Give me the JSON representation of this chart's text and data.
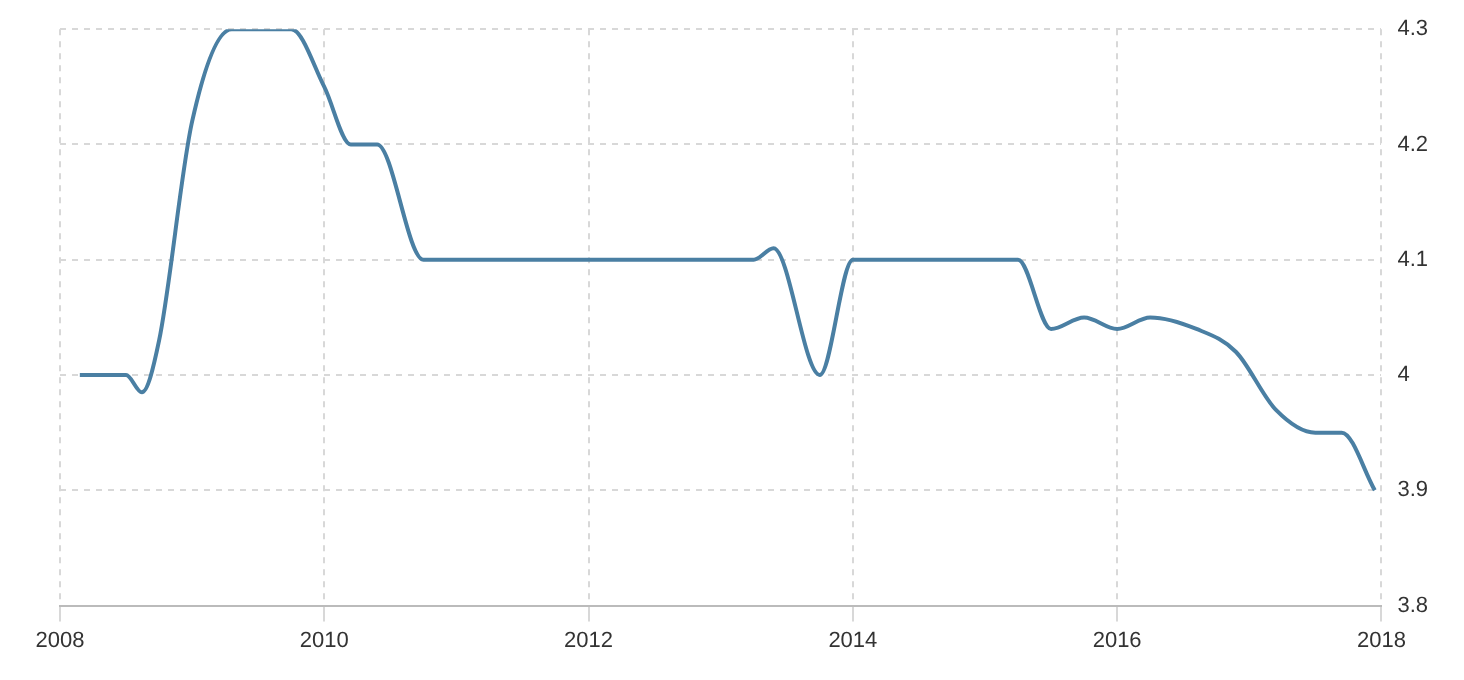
{
  "chart_data": {
    "type": "line",
    "x": [
      2008.15,
      2008.5,
      2008.62,
      2008.75,
      2009,
      2009.3,
      2009.75,
      2010,
      2010.2,
      2010.4,
      2010.75,
      2011,
      2013.25,
      2013.4,
      2013.75,
      2014,
      2014.2,
      2015.1,
      2015.25,
      2015.5,
      2015.75,
      2016,
      2016.25,
      2016.6,
      2016.9,
      2017.2,
      2017.5,
      2017.7,
      2017.95
    ],
    "series": [
      {
        "color": "#4a7fa3",
        "values": [
          4.0,
          4.0,
          3.985,
          4.03,
          4.22,
          4.3,
          4.3,
          4.25,
          4.2,
          4.2,
          4.1,
          4.1,
          4.1,
          4.11,
          4.0,
          4.1,
          4.1,
          4.1,
          4.1,
          4.04,
          4.05,
          4.04,
          4.05,
          4.04,
          4.02,
          3.97,
          3.95,
          3.95,
          3.9
        ]
      }
    ],
    "xlim": [
      2008,
      2018
    ],
    "xticks": [
      2008,
      2010,
      2012,
      2014,
      2016,
      2018
    ],
    "ylim": [
      3.8,
      4.3
    ],
    "yticks": [
      3.8,
      3.9,
      4,
      4.1,
      4.2,
      4.3
    ],
    "grid": true,
    "legend": false,
    "marker": "none",
    "line_style": "solid"
  }
}
